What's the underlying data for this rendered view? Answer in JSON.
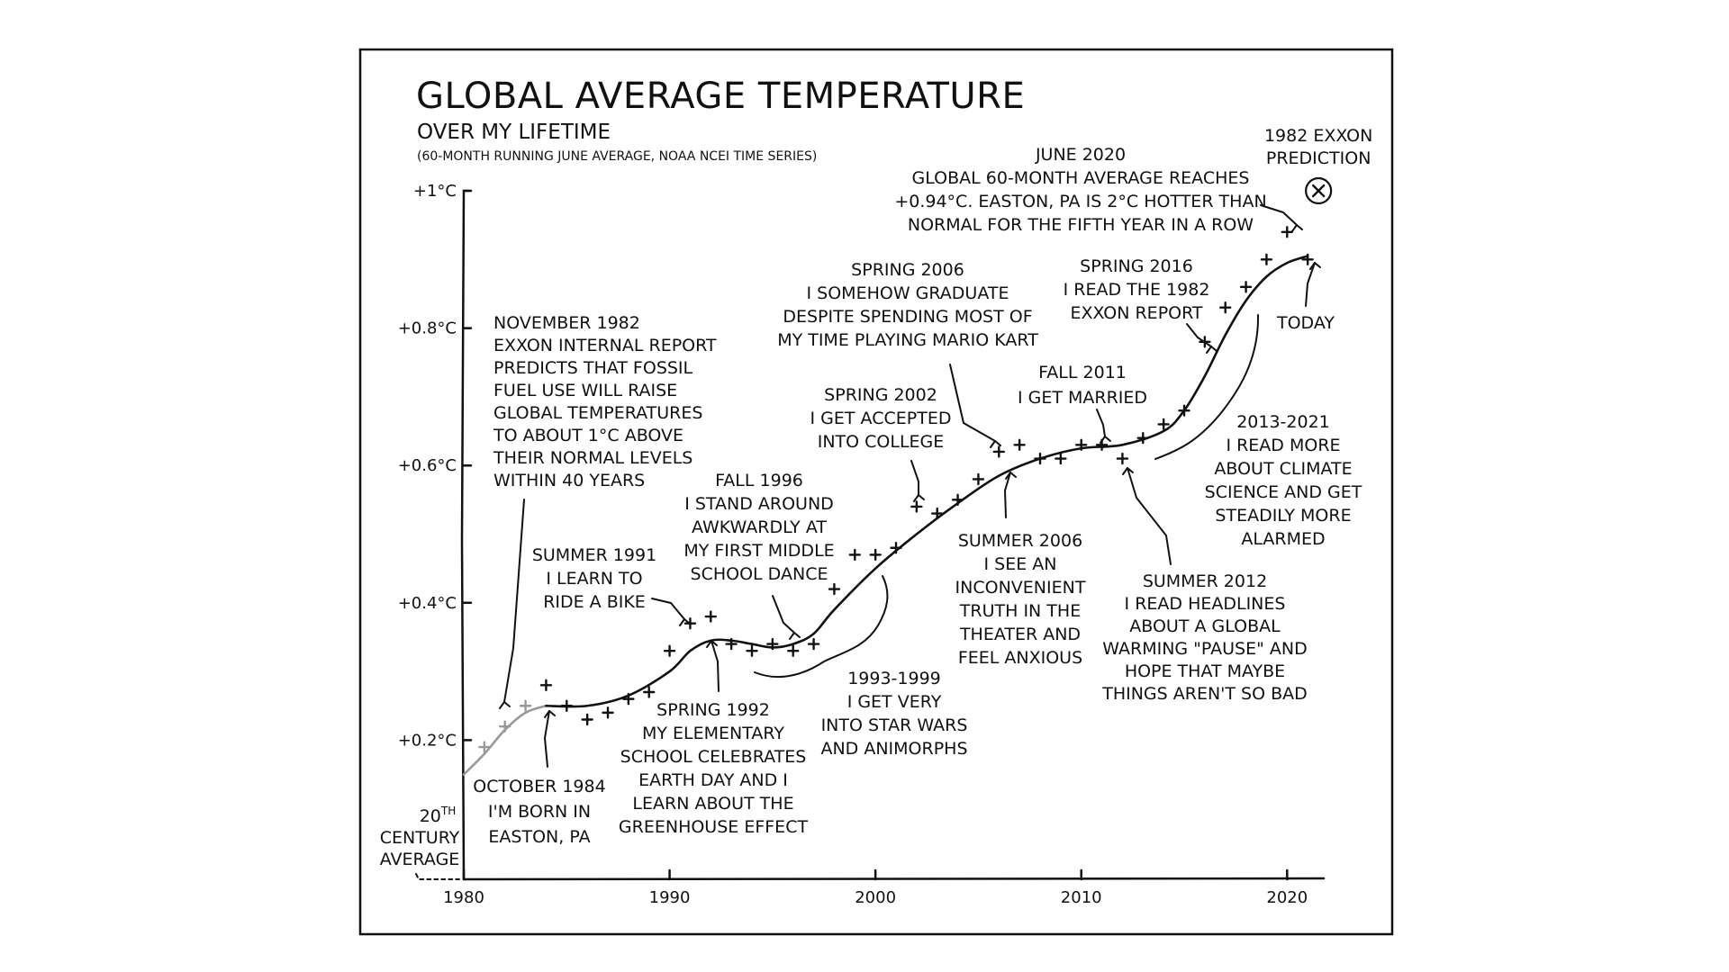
{
  "chart_data": {
    "type": "scatter",
    "title": "GLOBAL AVERAGE TEMPERATURE",
    "subtitle": "OVER MY LIFETIME",
    "note": "(60-MONTH RUNNING JUNE AVERAGE, NOAA NCEI TIME SERIES)",
    "xlim": [
      1980,
      2022
    ],
    "ylim": [
      0.0,
      1.0
    ],
    "x_ticks": [
      {
        "value": 1980,
        "label": "1980"
      },
      {
        "value": 1990,
        "label": "1990"
      },
      {
        "value": 2000,
        "label": "2000"
      },
      {
        "value": 2010,
        "label": "2010"
      },
      {
        "value": 2020,
        "label": "2020"
      }
    ],
    "y_ticks": [
      {
        "value": 0.2,
        "label": "+0.2°C"
      },
      {
        "value": 0.4,
        "label": "+0.4°C"
      },
      {
        "value": 0.6,
        "label": "+0.6°C"
      },
      {
        "value": 0.8,
        "label": "+0.8°C"
      },
      {
        "value": 1.0,
        "label": "+1°C"
      }
    ],
    "baseline_label": [
      "20TH",
      "CENTURY",
      "AVERAGE"
    ],
    "grid": false,
    "points": [
      {
        "x": 1981,
        "y": 0.19,
        "pre": true
      },
      {
        "x": 1982,
        "y": 0.22,
        "pre": true
      },
      {
        "x": 1983,
        "y": 0.25,
        "pre": true
      },
      {
        "x": 1984,
        "y": 0.28
      },
      {
        "x": 1985,
        "y": 0.25
      },
      {
        "x": 1986,
        "y": 0.23
      },
      {
        "x": 1987,
        "y": 0.24
      },
      {
        "x": 1988,
        "y": 0.26
      },
      {
        "x": 1989,
        "y": 0.27
      },
      {
        "x": 1990,
        "y": 0.33
      },
      {
        "x": 1991,
        "y": 0.37
      },
      {
        "x": 1992,
        "y": 0.38
      },
      {
        "x": 1993,
        "y": 0.34
      },
      {
        "x": 1994,
        "y": 0.33
      },
      {
        "x": 1995,
        "y": 0.34
      },
      {
        "x": 1996,
        "y": 0.33
      },
      {
        "x": 1997,
        "y": 0.34
      },
      {
        "x": 1998,
        "y": 0.42
      },
      {
        "x": 1999,
        "y": 0.47
      },
      {
        "x": 2000,
        "y": 0.47
      },
      {
        "x": 2001,
        "y": 0.48
      },
      {
        "x": 2002,
        "y": 0.54
      },
      {
        "x": 2003,
        "y": 0.53
      },
      {
        "x": 2004,
        "y": 0.55
      },
      {
        "x": 2005,
        "y": 0.58
      },
      {
        "x": 2006,
        "y": 0.62
      },
      {
        "x": 2007,
        "y": 0.63
      },
      {
        "x": 2008,
        "y": 0.61
      },
      {
        "x": 2009,
        "y": 0.61
      },
      {
        "x": 2010,
        "y": 0.63
      },
      {
        "x": 2011,
        "y": 0.63
      },
      {
        "x": 2012,
        "y": 0.61
      },
      {
        "x": 2013,
        "y": 0.64
      },
      {
        "x": 2014,
        "y": 0.66
      },
      {
        "x": 2015,
        "y": 0.68
      },
      {
        "x": 2016,
        "y": 0.78
      },
      {
        "x": 2017,
        "y": 0.83
      },
      {
        "x": 2018,
        "y": 0.86
      },
      {
        "x": 2019,
        "y": 0.9
      },
      {
        "x": 2020,
        "y": 0.94
      },
      {
        "x": 2021,
        "y": 0.9
      }
    ],
    "trend_pre": [
      [
        1980,
        0.15
      ],
      [
        1981,
        0.18
      ],
      [
        1982,
        0.215
      ],
      [
        1983,
        0.24
      ],
      [
        1984,
        0.25
      ]
    ],
    "trend": [
      [
        1984,
        0.25
      ],
      [
        1986,
        0.25
      ],
      [
        1988,
        0.265
      ],
      [
        1990,
        0.3
      ],
      [
        1991,
        0.33
      ],
      [
        1992,
        0.345
      ],
      [
        1993,
        0.345
      ],
      [
        1994,
        0.34
      ],
      [
        1995,
        0.335
      ],
      [
        1996,
        0.34
      ],
      [
        1997,
        0.355
      ],
      [
        1998,
        0.39
      ],
      [
        2000,
        0.45
      ],
      [
        2002,
        0.5
      ],
      [
        2004,
        0.545
      ],
      [
        2006,
        0.585
      ],
      [
        2008,
        0.61
      ],
      [
        2010,
        0.625
      ],
      [
        2012,
        0.63
      ],
      [
        2014,
        0.65
      ],
      [
        2015,
        0.68
      ],
      [
        2016,
        0.73
      ],
      [
        2017,
        0.79
      ],
      [
        2018,
        0.84
      ],
      [
        2019,
        0.875
      ],
      [
        2020,
        0.895
      ],
      [
        2021,
        0.905
      ]
    ],
    "exxon_prediction": {
      "x": 2021,
      "y": 1.0,
      "label": [
        "1982 EXXON",
        "PREDICTION"
      ]
    },
    "annotations": [
      {
        "id": "nov1982",
        "lines": [
          "NOVEMBER 1982",
          "EXXON INTERNAL REPORT",
          "PREDICTS THAT FOSSIL",
          "FUEL USE WILL RAISE",
          "GLOBAL TEMPERATURES",
          "TO ABOUT 1°C ABOVE",
          "THEIR NORMAL LEVELS",
          "WITHIN 40 YEARS"
        ]
      },
      {
        "id": "oct1984",
        "lines": [
          "OCTOBER 1984",
          "I'M BORN IN",
          "EASTON, PA"
        ]
      },
      {
        "id": "summer1991",
        "lines": [
          "SUMMER 1991",
          "I LEARN TO",
          "RIDE A BIKE"
        ]
      },
      {
        "id": "spring1992",
        "lines": [
          "SPRING 1992",
          "MY ELEMENTARY",
          "SCHOOL CELEBRATES",
          "EARTH DAY AND I",
          "LEARN ABOUT THE",
          "GREENHOUSE EFFECT"
        ]
      },
      {
        "id": "fall1996",
        "lines": [
          "FALL 1996",
          "I STAND AROUND",
          "AWKWARDLY AT",
          "MY FIRST MIDDLE",
          "SCHOOL DANCE"
        ]
      },
      {
        "id": "y1993_1999",
        "lines": [
          "1993-1999",
          "I GET VERY",
          "INTO STAR WARS",
          "AND ANIMORPHS"
        ]
      },
      {
        "id": "spring2002",
        "lines": [
          "SPRING 2002",
          "I GET ACCEPTED",
          "INTO COLLEGE"
        ]
      },
      {
        "id": "spring2006",
        "lines": [
          "SPRING 2006",
          "I SOMEHOW GRADUATE",
          "DESPITE SPENDING MOST OF",
          "MY TIME PLAYING MARIO KART"
        ]
      },
      {
        "id": "summer2006",
        "lines": [
          "SUMMER 2006",
          "I SEE AN",
          "INCONVENIENT",
          "TRUTH IN THE",
          "THEATER AND",
          "FEEL ANXIOUS"
        ]
      },
      {
        "id": "fall2011",
        "lines": [
          "FALL 2011",
          "I GET MARRIED"
        ]
      },
      {
        "id": "summer2012",
        "lines": [
          "SUMMER 2012",
          "I READ HEADLINES",
          "ABOUT A GLOBAL",
          "WARMING \"PAUSE\" AND",
          "HOPE THAT MAYBE",
          "THINGS AREN'T SO BAD"
        ]
      },
      {
        "id": "y2013_2021",
        "lines": [
          "2013-2021",
          "I READ MORE",
          "ABOUT CLIMATE",
          "SCIENCE AND GET",
          "STEADILY MORE",
          "ALARMED"
        ]
      },
      {
        "id": "spring2016",
        "lines": [
          "SPRING 2016",
          "I READ THE 1982",
          "EXXON REPORT"
        ]
      },
      {
        "id": "june2020",
        "lines": [
          "JUNE 2020",
          "GLOBAL 60-MONTH AVERAGE REACHES",
          "+0.94°C. EASTON, PA IS 2°C HOTTER THAN",
          "NORMAL FOR THE FIFTH YEAR IN A ROW"
        ]
      },
      {
        "id": "today",
        "lines": [
          "TODAY"
        ]
      }
    ]
  }
}
